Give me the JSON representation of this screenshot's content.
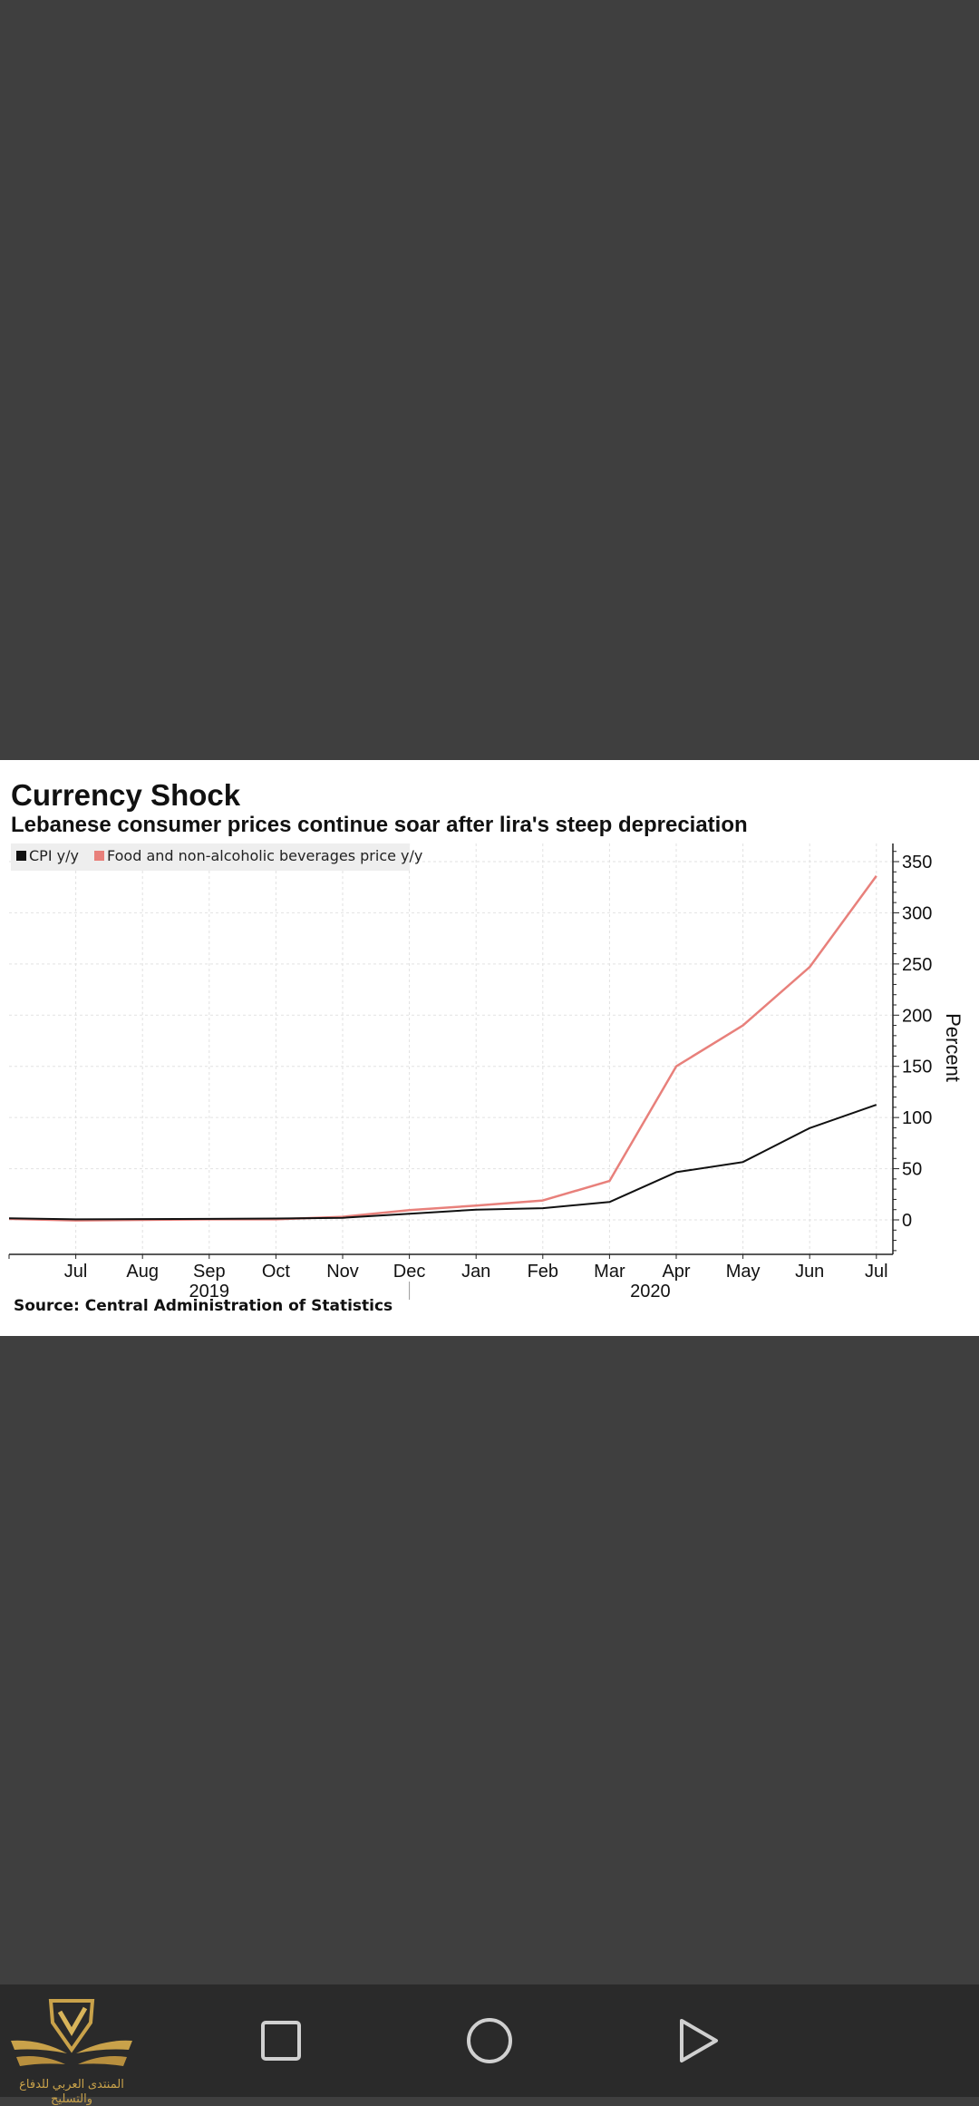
{
  "chart_data": {
    "type": "line",
    "title": "Currency Shock",
    "subtitle": "Lebanese consumer prices continue soar after lira's steep depreciation",
    "source": "Source: Central Administration of Statistics",
    "ylabel": "Percent",
    "ylim": [
      -30,
      370
    ],
    "yticks": [
      0,
      50,
      100,
      150,
      200,
      250,
      300,
      350
    ],
    "ytick_labels": [
      "0",
      "50",
      "100",
      "150",
      "200",
      "250",
      "300",
      "350"
    ],
    "x_labels": [
      "Jul",
      "Aug",
      "Sep",
      "Oct",
      "Nov",
      "Dec",
      "Jan",
      "Feb",
      "Mar",
      "Apr",
      "May",
      "Jun",
      "Jul"
    ],
    "year_labels": [
      {
        "label": "2019",
        "under": "Sep"
      },
      {
        "label": "2020",
        "under": "Mar"
      }
    ],
    "grid": true,
    "legend_position": "top-left",
    "series": [
      {
        "name": "CPI y/y",
        "color": "#111111",
        "x": [
          "Jun 2019",
          "Jul 2019",
          "Aug 2019",
          "Sep 2019",
          "Oct 2019",
          "Nov 2019",
          "Dec 2019",
          "Jan 2020",
          "Feb 2020",
          "Mar 2020",
          "Apr 2020",
          "May 2020",
          "Jun 2020",
          "Jul 2020"
        ],
        "values": [
          1.5,
          0.5,
          0.8,
          1.0,
          1.3,
          2.0,
          6.0,
          10.0,
          11.4,
          17.5,
          46.6,
          56.5,
          89.7,
          112.4
        ]
      },
      {
        "name": "Food and non-alcoholic beverages price y/y",
        "color": "#e8807b",
        "x": [
          "Jun 2019",
          "Jul 2019",
          "Aug 2019",
          "Sep 2019",
          "Oct 2019",
          "Nov 2019",
          "Dec 2019",
          "Jan 2020",
          "Feb 2020",
          "Mar 2020",
          "Apr 2020",
          "May 2020",
          "Jun 2020",
          "Jul 2020"
        ],
        "values": [
          1.0,
          -0.5,
          0.0,
          0.5,
          0.5,
          3.0,
          9.5,
          14.0,
          19.0,
          38.0,
          150.0,
          190.0,
          247.0,
          336.0
        ]
      }
    ]
  },
  "watermark": {
    "text": "المنتدى العربي للدفاع والتسليح"
  },
  "navbar": {
    "buttons": [
      {
        "name": "recents-button",
        "icon": "square-icon"
      },
      {
        "name": "home-button",
        "icon": "circle-icon"
      },
      {
        "name": "back-button",
        "icon": "triangle-icon"
      }
    ]
  }
}
